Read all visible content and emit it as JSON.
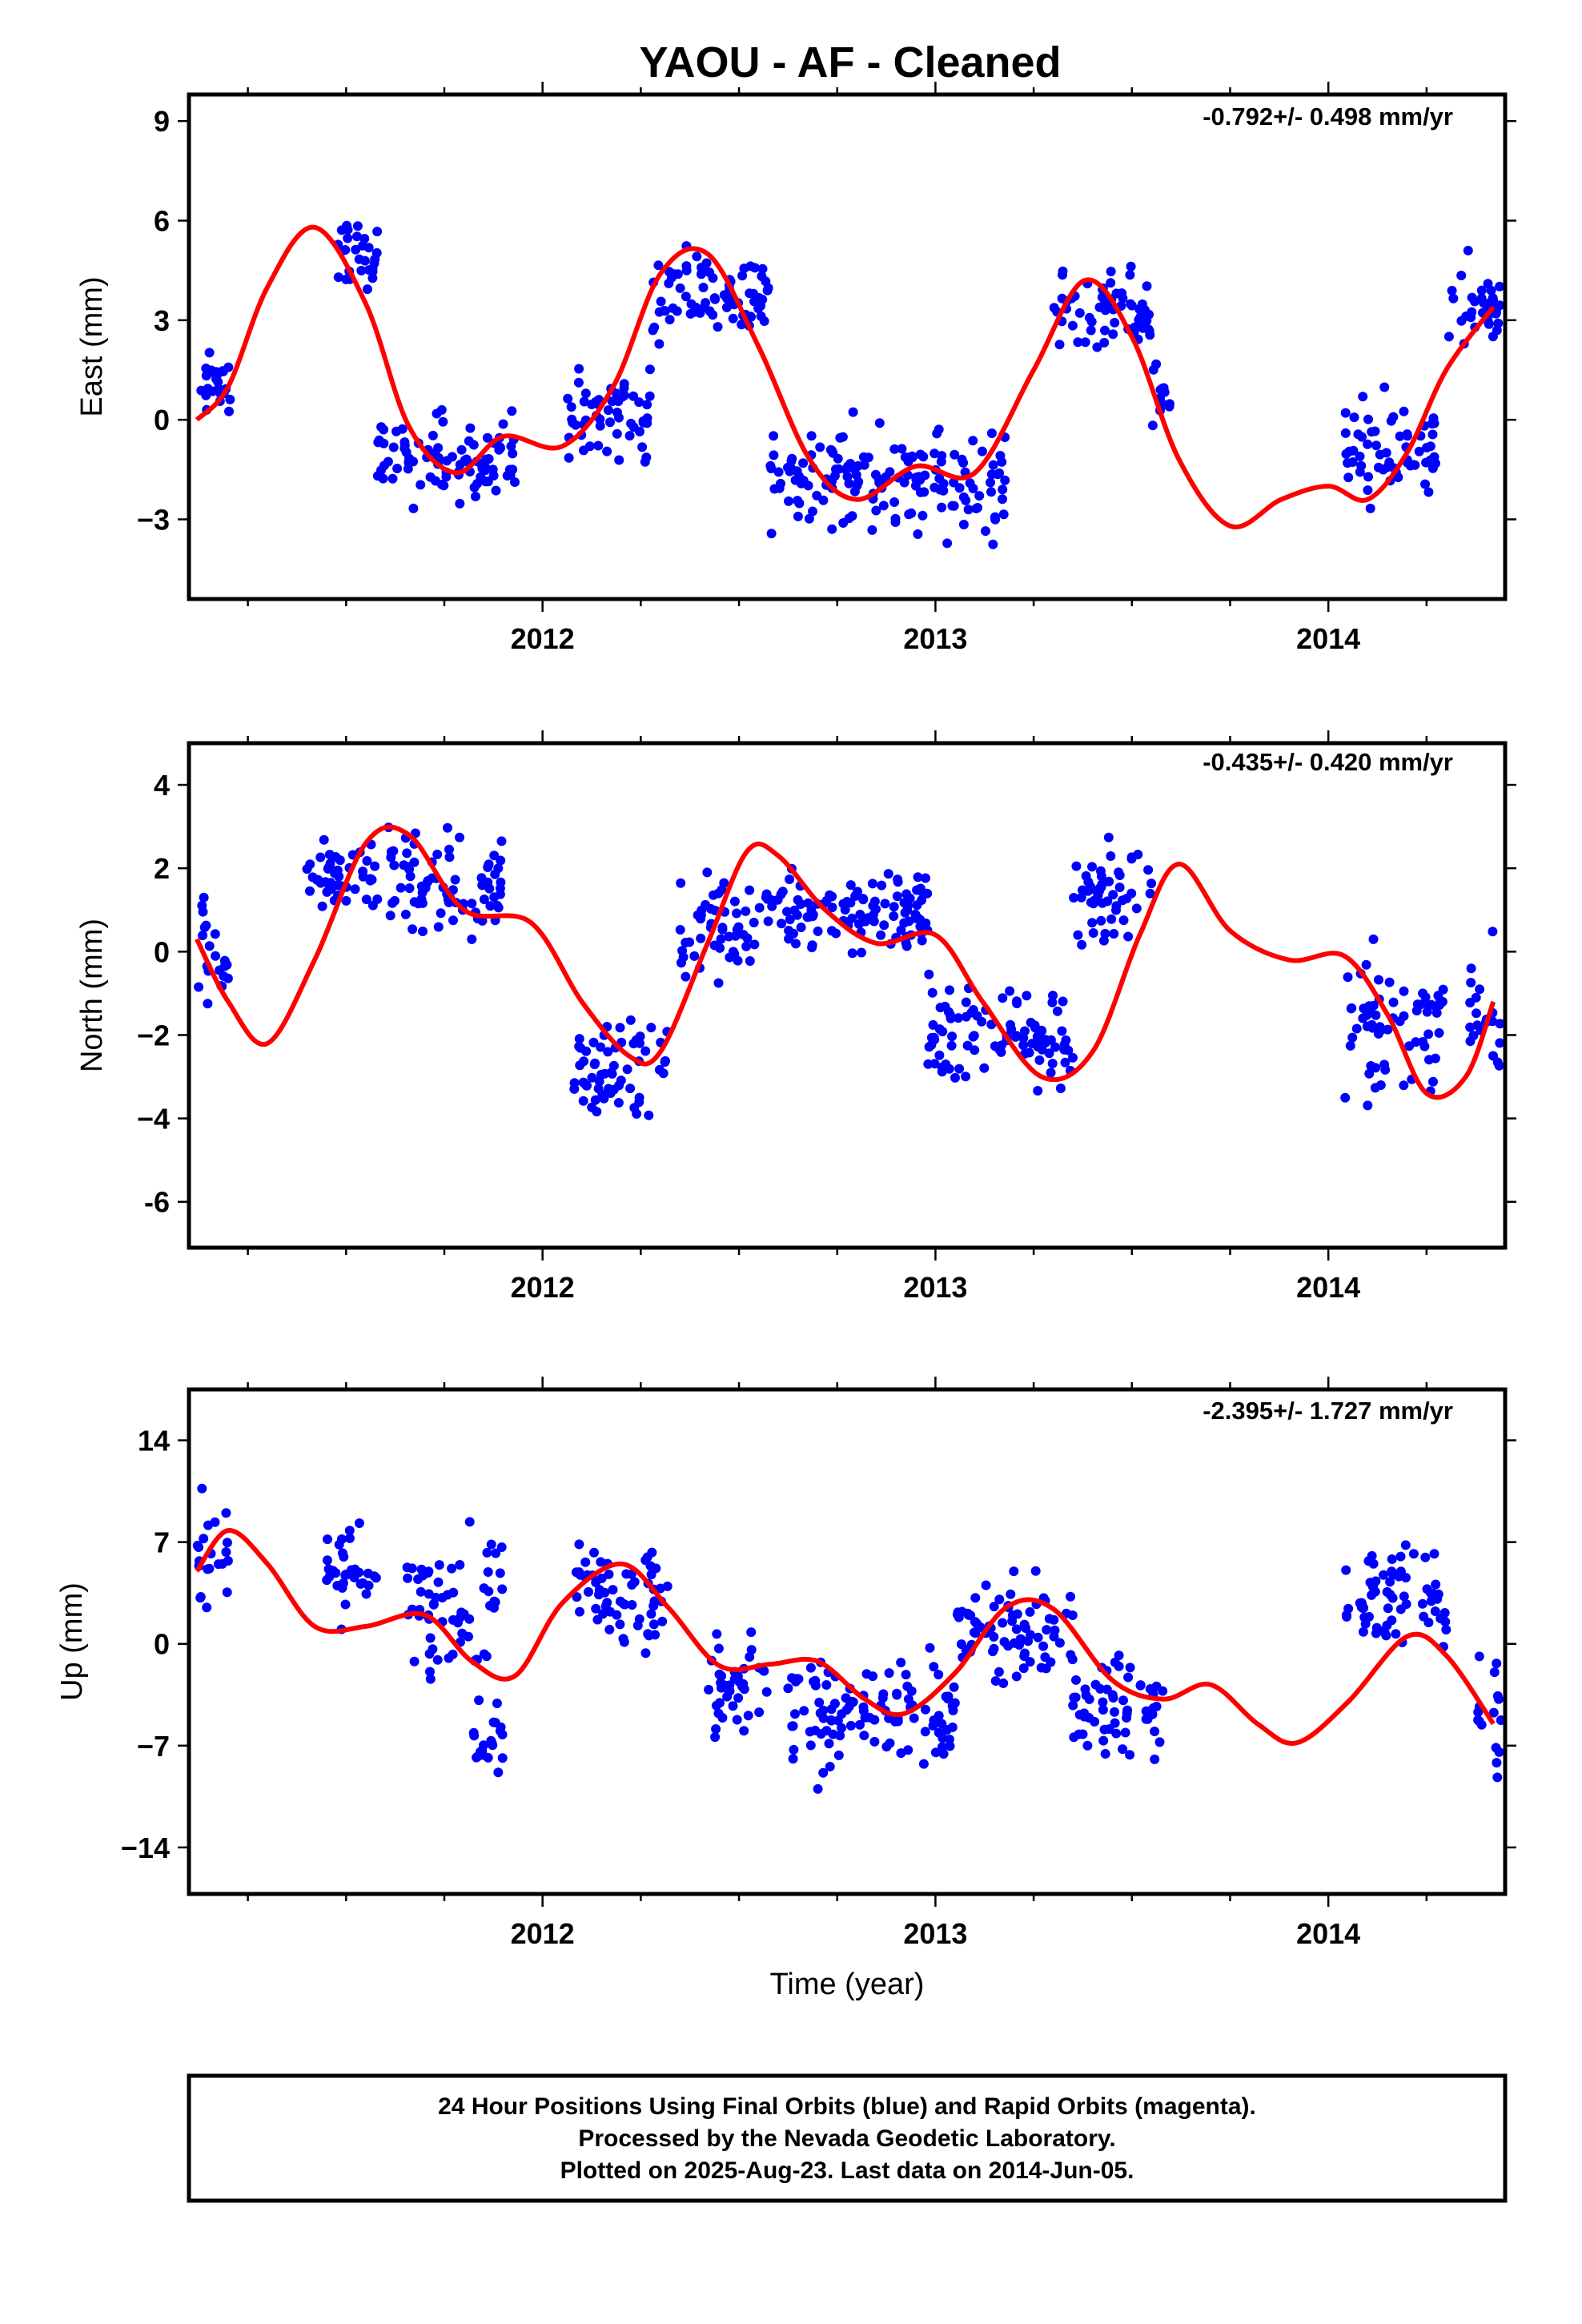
{
  "title": "YAOU  - AF - Cleaned",
  "x_axis_label": "Time (year)",
  "footer": {
    "line1": "24 Hour Positions Using Final Orbits (blue) and Rapid Orbits (magenta).",
    "line2": "Processed by the Nevada Geodetic Laboratory.",
    "line3": "Plotted on 2025-Aug-23. Last data on 2014-Jun-05."
  },
  "colors": {
    "final_orbits": "#0000ff",
    "model_fit": "#ff0000",
    "frame": "#000000"
  },
  "chart_data": [
    {
      "type": "scatter",
      "id": "east",
      "ylabel": "East (mm)",
      "rate_label": "-0.792+/- 0.498 mm/yr",
      "xlim": [
        2011.1,
        2014.45
      ],
      "ylim": [
        -5.4,
        9.8
      ],
      "yticks": [
        -3,
        0,
        3,
        6,
        9
      ],
      "ytick_labels": [
        "−3",
        "0",
        "3",
        "6",
        "9"
      ],
      "xticks": [
        2012,
        2013,
        2014
      ],
      "xtick_labels": [
        "2012",
        "2013",
        "2014"
      ],
      "minor_xticks": [
        2011.25,
        2011.5,
        2011.75,
        2012.25,
        2012.5,
        2012.75,
        2013.25,
        2013.5,
        2013.75,
        2014.25
      ],
      "model": {
        "x": [
          2011.12,
          2011.2,
          2011.3,
          2011.42,
          2011.55,
          2011.66,
          2011.78,
          2011.9,
          2012.05,
          2012.18,
          2012.3,
          2012.42,
          2012.55,
          2012.68,
          2012.8,
          2012.95,
          2013.1,
          2013.25,
          2013.38,
          2013.5,
          2013.62,
          2013.75,
          2013.88,
          2014.0,
          2014.1,
          2014.2,
          2014.3,
          2014.42
        ],
        "y": [
          0.0,
          1.0,
          4.0,
          5.8,
          3.5,
          -0.2,
          -1.6,
          -0.5,
          -0.8,
          1.0,
          4.4,
          5.0,
          2.2,
          -1.2,
          -2.4,
          -1.4,
          -1.6,
          1.5,
          4.2,
          2.5,
          -1.2,
          -3.2,
          -2.4,
          -2.0,
          -2.4,
          -1.0,
          1.5,
          3.4
        ]
      },
      "clusters": [
        {
          "from": 2011.12,
          "to": 2011.22,
          "center": 1.0,
          "spread": 2.8
        },
        {
          "from": 2011.47,
          "to": 2011.58,
          "center": 5.0,
          "spread": 3.0
        },
        {
          "from": 2011.58,
          "to": 2011.93,
          "center": -1.2,
          "spread": 4.0
        },
        {
          "from": 2012.06,
          "to": 2012.28,
          "center": 0.2,
          "spread": 4.0
        },
        {
          "from": 2012.28,
          "to": 2012.58,
          "center": 3.8,
          "spread": 4.2
        },
        {
          "from": 2012.58,
          "to": 2013.18,
          "center": -1.8,
          "spread": 4.8
        },
        {
          "from": 2013.3,
          "to": 2013.55,
          "center": 3.2,
          "spread": 3.8
        },
        {
          "from": 2013.55,
          "to": 2013.6,
          "center": 0.5,
          "spread": 3.0
        },
        {
          "from": 2014.04,
          "to": 2014.28,
          "center": -1.0,
          "spread": 5.0
        },
        {
          "from": 2014.3,
          "to": 2014.44,
          "center": 3.5,
          "spread": 4.0
        }
      ]
    },
    {
      "type": "scatter",
      "id": "north",
      "ylabel": "North (mm)",
      "rate_label": "-0.435+/- 0.420 mm/yr",
      "xlim": [
        2011.1,
        2014.45
      ],
      "ylim": [
        -7.1,
        5.0
      ],
      "yticks": [
        -6,
        -4,
        -2,
        0,
        2,
        4
      ],
      "ytick_labels": [
        "-6",
        "−4",
        "−2",
        "0",
        "2",
        "4"
      ],
      "xticks": [
        2012,
        2013,
        2014
      ],
      "xtick_labels": [
        "2012",
        "2013",
        "2014"
      ],
      "minor_xticks": [
        2011.25,
        2011.5,
        2011.75,
        2012.25,
        2012.5,
        2012.75,
        2013.25,
        2013.5,
        2013.75,
        2014.25
      ],
      "model": {
        "x": [
          2011.12,
          2011.2,
          2011.3,
          2011.42,
          2011.55,
          2011.66,
          2011.8,
          2011.97,
          2012.1,
          2012.22,
          2012.3,
          2012.42,
          2012.52,
          2012.6,
          2012.72,
          2012.85,
          2013.0,
          2013.12,
          2013.27,
          2013.4,
          2013.52,
          2013.62,
          2013.75,
          2013.9,
          2014.04,
          2014.15,
          2014.25,
          2014.35,
          2014.42
        ],
        "y": [
          0.3,
          -1.2,
          -2.2,
          -0.2,
          2.6,
          2.8,
          1.0,
          0.7,
          -1.2,
          -2.5,
          -2.4,
          0.2,
          2.4,
          2.3,
          1.0,
          0.2,
          0.4,
          -1.2,
          -3.0,
          -2.4,
          0.4,
          2.1,
          0.5,
          -0.2,
          -0.1,
          -1.5,
          -3.4,
          -3.0,
          -1.2
        ]
      },
      "clusters": [
        {
          "from": 2011.12,
          "to": 2011.2,
          "center": 0.0,
          "spread": 4.2
        },
        {
          "from": 2011.4,
          "to": 2011.58,
          "center": 1.8,
          "spread": 2.5
        },
        {
          "from": 2011.6,
          "to": 2011.9,
          "center": 1.6,
          "spread": 3.5
        },
        {
          "from": 2012.08,
          "to": 2012.32,
          "center": -2.8,
          "spread": 3.5
        },
        {
          "from": 2012.35,
          "to": 2012.55,
          "center": 0.6,
          "spread": 3.6
        },
        {
          "from": 2012.55,
          "to": 2012.98,
          "center": 1.0,
          "spread": 3.2
        },
        {
          "from": 2012.98,
          "to": 2013.35,
          "center": -2.0,
          "spread": 4.0
        },
        {
          "from": 2013.35,
          "to": 2013.55,
          "center": 1.4,
          "spread": 4.0
        },
        {
          "from": 2014.04,
          "to": 2014.3,
          "center": -1.8,
          "spread": 4.5
        },
        {
          "from": 2014.36,
          "to": 2014.44,
          "center": -1.5,
          "spread": 4.5
        }
      ]
    },
    {
      "type": "scatter",
      "id": "up",
      "ylabel": "Up (mm)",
      "rate_label": "-2.395+/- 1.727 mm/yr",
      "xlim": [
        2011.1,
        2014.45
      ],
      "ylim": [
        -17.2,
        17.5
      ],
      "yticks": [
        -14,
        -7,
        0,
        7,
        14
      ],
      "ytick_labels": [
        "−14",
        "−7",
        "0",
        "7",
        "14"
      ],
      "xticks": [
        2012,
        2013,
        2014
      ],
      "xtick_labels": [
        "2012",
        "2013",
        "2014"
      ],
      "minor_xticks": [
        2011.25,
        2011.5,
        2011.75,
        2012.25,
        2012.5,
        2012.75,
        2013.25,
        2013.5,
        2013.75,
        2014.25
      ],
      "model": {
        "x": [
          2011.12,
          2011.2,
          2011.3,
          2011.42,
          2011.55,
          2011.7,
          2011.82,
          2011.93,
          2012.05,
          2012.2,
          2012.32,
          2012.45,
          2012.58,
          2012.7,
          2012.82,
          2012.92,
          2013.05,
          2013.18,
          2013.3,
          2013.45,
          2013.58,
          2013.7,
          2013.82,
          2013.92,
          2014.05,
          2014.2,
          2014.3,
          2014.42
        ],
        "y": [
          5.0,
          7.8,
          5.5,
          1.2,
          1.2,
          2.0,
          -1.2,
          -2.2,
          2.8,
          5.5,
          2.5,
          -1.5,
          -1.4,
          -1.2,
          -3.8,
          -4.8,
          -2.0,
          2.5,
          2.4,
          -2.5,
          -3.8,
          -2.8,
          -5.5,
          -6.8,
          -4.0,
          0.5,
          -0.8,
          -5.5
        ]
      },
      "clusters": [
        {
          "from": 2011.12,
          "to": 2011.2,
          "center": 5.0,
          "spread": 14
        },
        {
          "from": 2011.45,
          "to": 2011.58,
          "center": 5.0,
          "spread": 10
        },
        {
          "from": 2011.65,
          "to": 2011.9,
          "center": 3.0,
          "spread": 14
        },
        {
          "from": 2011.82,
          "to": 2011.9,
          "center": -6.0,
          "spread": 8
        },
        {
          "from": 2012.08,
          "to": 2012.32,
          "center": 3.5,
          "spread": 11
        },
        {
          "from": 2012.42,
          "to": 2012.58,
          "center": -3.0,
          "spread": 12
        },
        {
          "from": 2012.62,
          "to": 2013.05,
          "center": -5.0,
          "spread": 12
        },
        {
          "from": 2013.05,
          "to": 2013.35,
          "center": 0.5,
          "spread": 10
        },
        {
          "from": 2013.35,
          "to": 2013.58,
          "center": -4.0,
          "spread": 10
        },
        {
          "from": 2014.04,
          "to": 2014.3,
          "center": 3.0,
          "spread": 12
        },
        {
          "from": 2014.38,
          "to": 2014.44,
          "center": -5.0,
          "spread": 20
        }
      ]
    }
  ]
}
